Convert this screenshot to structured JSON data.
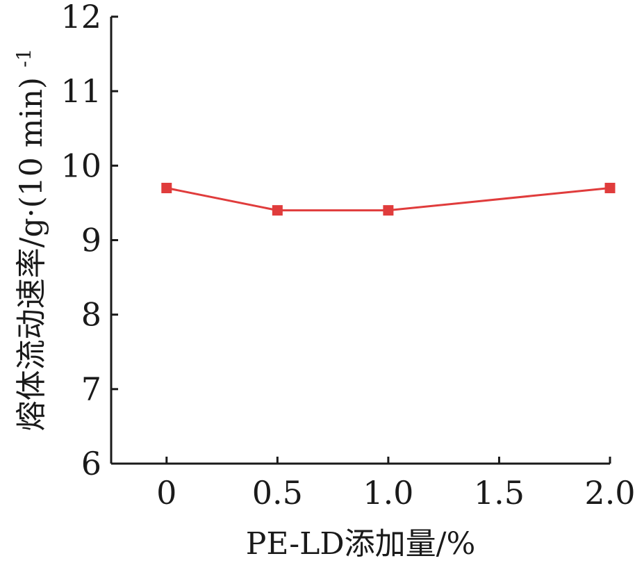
{
  "chart_data": {
    "type": "line",
    "title": "",
    "xlabel": "PE-LD添加量/%",
    "ylabel": "熔体流动速率/g·(10 min)",
    "ylabel_superscript": "-1",
    "x_tick_labels": [
      "0",
      "0.5",
      "1.0",
      "1.5",
      "2.0"
    ],
    "x_ticks": [
      0,
      0.5,
      1.0,
      1.5,
      2.0
    ],
    "y_tick_labels": [
      "6",
      "7",
      "8",
      "9",
      "10",
      "11",
      "12"
    ],
    "y_ticks": [
      6,
      7,
      8,
      9,
      10,
      11,
      12
    ],
    "xlim": [
      -0.25,
      2.0
    ],
    "ylim": [
      6,
      12
    ],
    "grid": false,
    "series": [
      {
        "color": "#e03c3c",
        "marker": "square",
        "x": [
          0,
          0.5,
          1.0,
          2.0
        ],
        "y": [
          9.7,
          9.4,
          9.4,
          9.7
        ]
      }
    ]
  }
}
